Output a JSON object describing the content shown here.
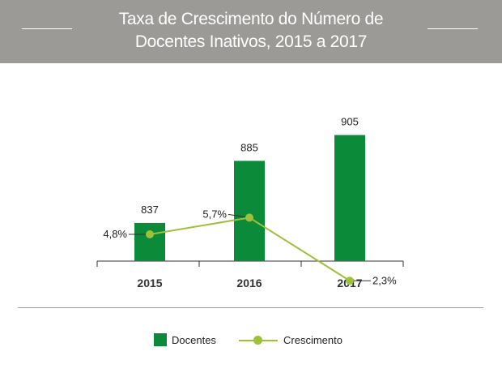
{
  "header": {
    "title_line1": "Taxa de Crescimento do Número de",
    "title_line2": "Docentes Inativos, 2015 a 2017"
  },
  "colors": {
    "header_bg": "#9b9a97",
    "bar": "#0b8a3a",
    "line": "#9dc13b",
    "text": "#222222"
  },
  "chart_data": {
    "type": "bar",
    "title": "Taxa de Crescimento do Número de Docentes Inativos, 2015 a 2017",
    "categories": [
      "2015",
      "2016",
      "2017"
    ],
    "series": [
      {
        "name": "Docentes",
        "type": "bar",
        "values": [
          837,
          885,
          905
        ],
        "labels": [
          "837",
          "885",
          "905"
        ]
      },
      {
        "name": "Crescimento",
        "type": "line",
        "values": [
          4.8,
          5.7,
          2.3
        ],
        "labels": [
          "4,8%",
          "5,7%",
          "2,3%"
        ]
      }
    ],
    "grid": false,
    "legend": "bottom"
  },
  "legend": {
    "bar_label": "Docentes",
    "line_label": "Crescimento"
  }
}
